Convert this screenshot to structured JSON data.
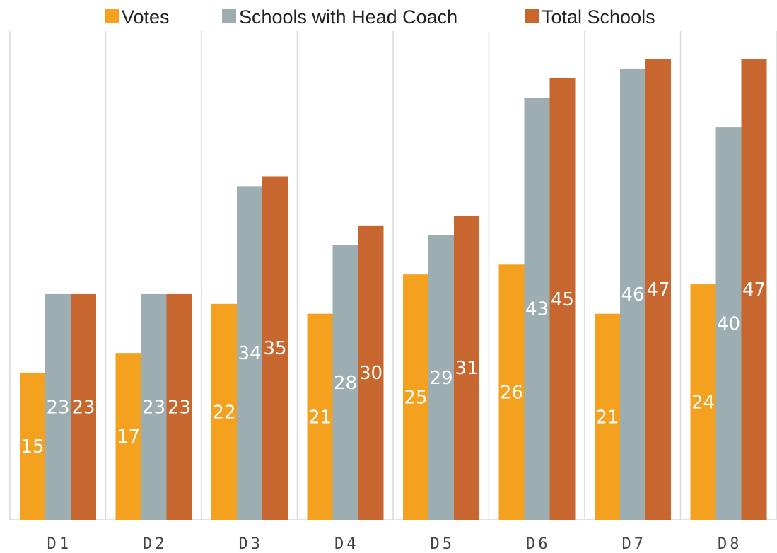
{
  "chart_data": {
    "type": "bar",
    "categories": [
      "D1",
      "D2",
      "D3",
      "D4",
      "D5",
      "D6",
      "D7",
      "D8"
    ],
    "series": [
      {
        "name": "Votes",
        "color": "#F4A11F",
        "values": [
          15,
          17,
          22,
          21,
          25,
          26,
          21,
          24
        ]
      },
      {
        "name": "Schools with Head Coach",
        "color": "#9DAEB3",
        "values": [
          23,
          23,
          34,
          28,
          29,
          43,
          46,
          40
        ]
      },
      {
        "name": "Total Schools",
        "color": "#C8662F",
        "values": [
          23,
          23,
          35,
          30,
          31,
          45,
          47,
          47
        ]
      }
    ],
    "ylim": [
      0,
      47
    ],
    "grid": "vertical category separators",
    "legend_position": "top",
    "data_labels": true
  }
}
